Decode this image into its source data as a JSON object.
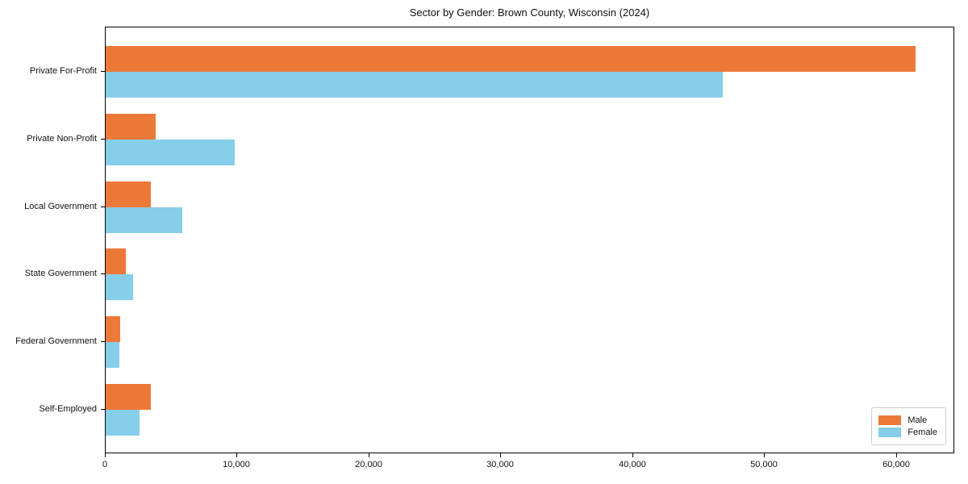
{
  "title": "Sector by Gender: Brown County, Wisconsin (2024)",
  "chart_data": {
    "type": "bar",
    "orientation": "horizontal",
    "title": "Sector by Gender: Brown County, Wisconsin (2024)",
    "categories": [
      "Private For-Profit",
      "Private Non-Profit",
      "Local Government",
      "State Government",
      "Federal Government",
      "Self-Employed"
    ],
    "series": [
      {
        "name": "Male",
        "color": "#ED7939",
        "values": [
          61400,
          3800,
          3400,
          1500,
          1100,
          3400
        ]
      },
      {
        "name": "Female",
        "color": "#87CEEB",
        "values": [
          46800,
          9800,
          5800,
          2100,
          1050,
          2600
        ]
      }
    ],
    "xlabel": "",
    "ylabel": "",
    "xlim": [
      0,
      64300
    ],
    "x_ticks": [
      0,
      10000,
      20000,
      30000,
      40000,
      50000,
      60000
    ],
    "x_tick_labels": [
      "0",
      "10,000",
      "20,000",
      "30,000",
      "40,000",
      "50,000",
      "60,000"
    ],
    "grid": false,
    "legend_position": "lower right",
    "legend": [
      "Male",
      "Female"
    ]
  }
}
